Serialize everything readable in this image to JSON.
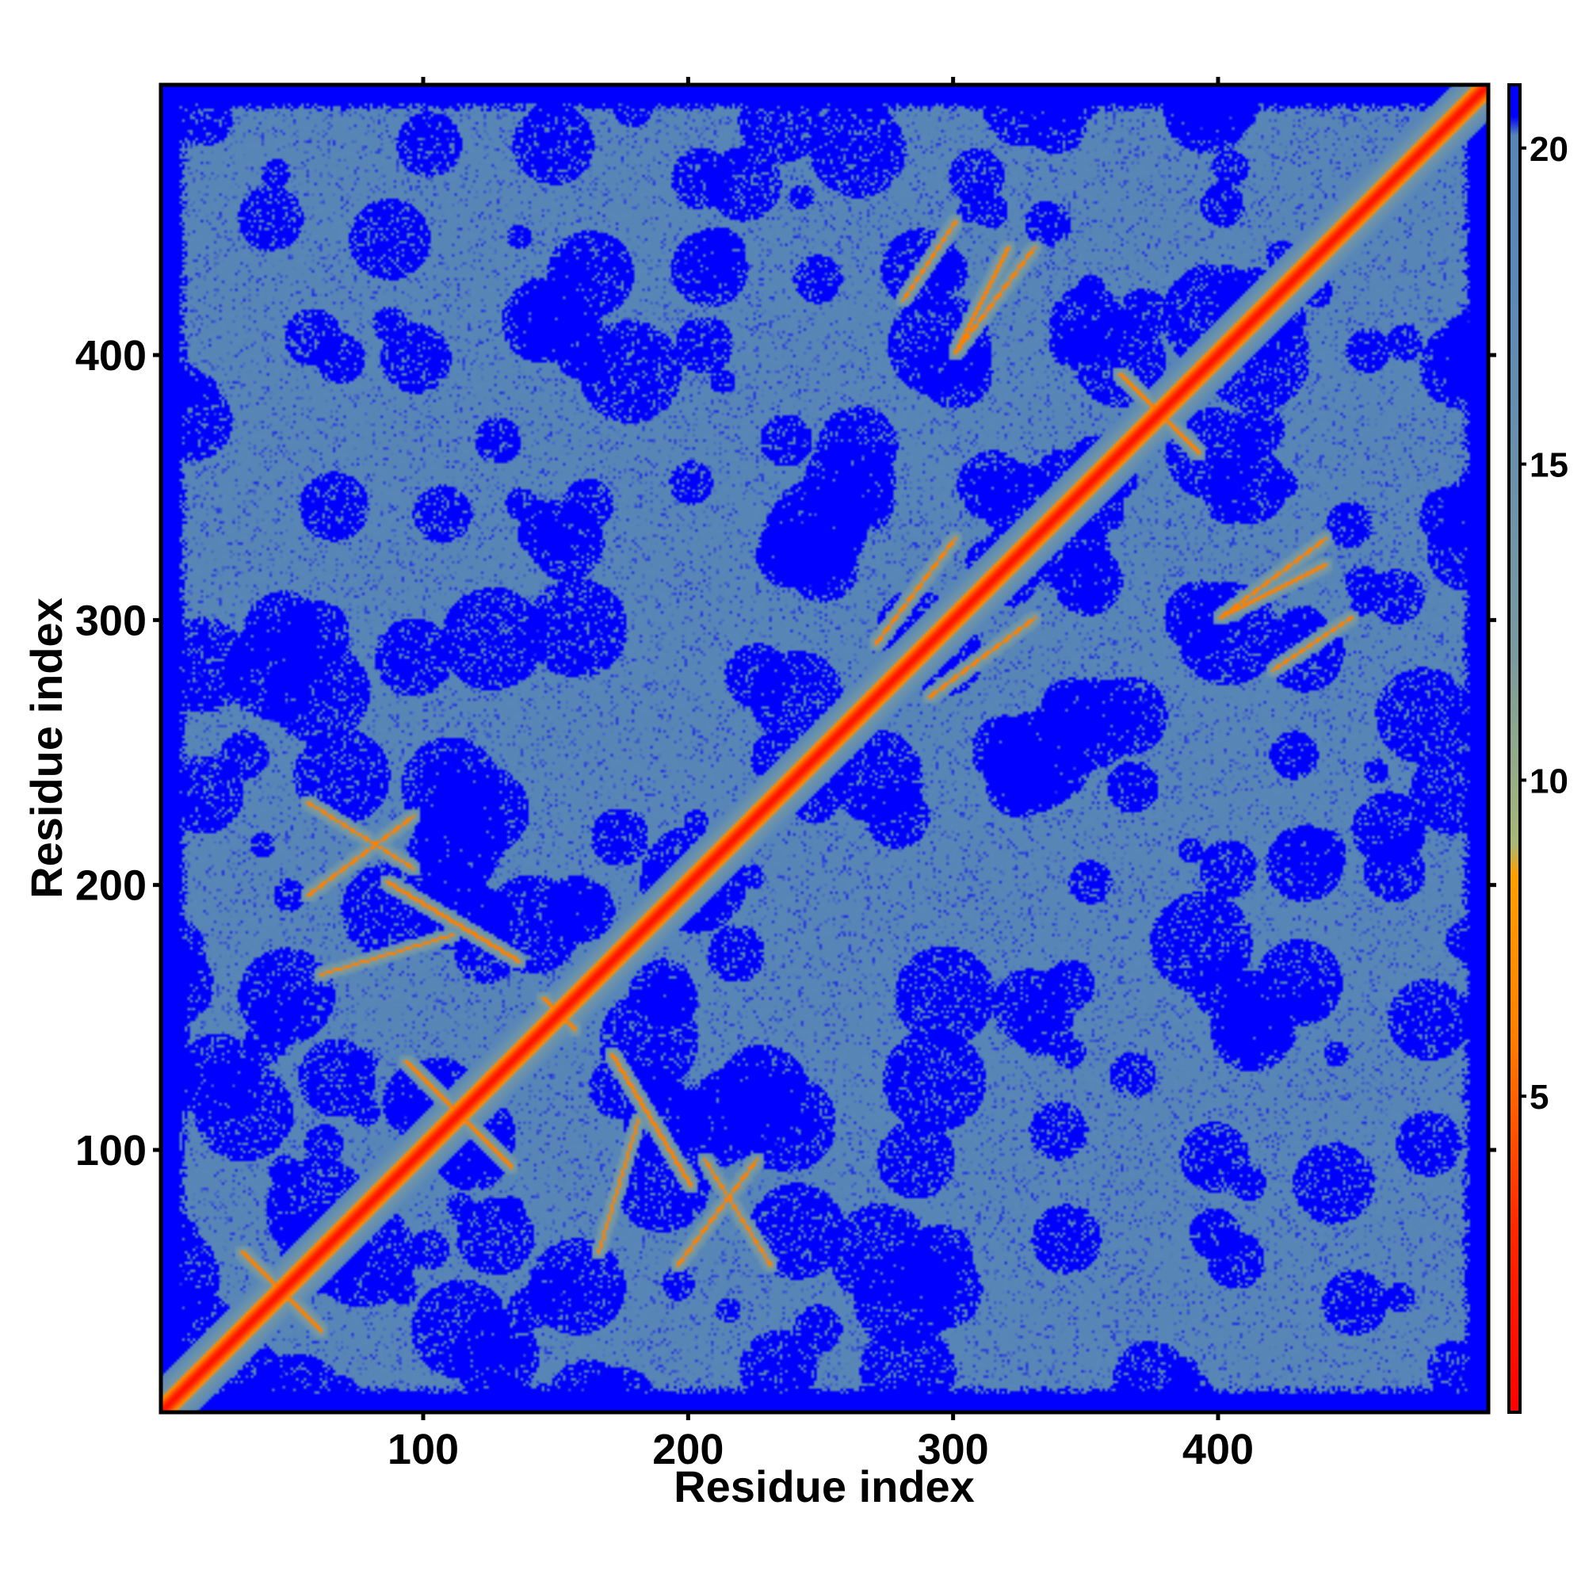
{
  "chart_data": {
    "type": "heatmap",
    "title": "",
    "xlabel": "Residue index",
    "ylabel": "Residue index",
    "xlim": [
      1,
      502
    ],
    "ylim": [
      1,
      502
    ],
    "x_ticks": [
      100,
      200,
      300,
      400
    ],
    "y_ticks": [
      100,
      200,
      300,
      400
    ],
    "x_tick_labels": [
      "100",
      "200",
      "300",
      "400"
    ],
    "y_tick_labels": [
      "100",
      "200",
      "300",
      "400"
    ],
    "colorbar": {
      "range": [
        0,
        21
      ],
      "ticks": [
        5,
        10,
        15,
        20
      ],
      "tick_labels": [
        "5",
        "10",
        "15",
        "20"
      ],
      "stops": [
        {
          "value": 0,
          "color": "#ff0000"
        },
        {
          "value": 3,
          "color": "#ff2a00"
        },
        {
          "value": 6,
          "color": "#ff8000"
        },
        {
          "value": 8.5,
          "color": "#ffa000"
        },
        {
          "value": 9,
          "color": "#a8b878"
        },
        {
          "value": 12,
          "color": "#7a9aa0"
        },
        {
          "value": 18,
          "color": "#5a88b8"
        },
        {
          "value": 20.2,
          "color": "#5786b6"
        },
        {
          "value": 20.5,
          "color": "#0000ff"
        },
        {
          "value": 21,
          "color": "#0000ff"
        }
      ]
    },
    "matrix_description_values": {
      "far_value": 21,
      "background_value": 19,
      "contact_value": 6,
      "diagonal_value": 1
    },
    "contact_features": [
      {
        "type": "antiparallel",
        "center": [
          45,
          45
        ],
        "length": 30
      },
      {
        "type": "antiparallel",
        "center": [
          112,
          112
        ],
        "length": 40
      },
      {
        "type": "antiparallel",
        "center": [
          150,
          150
        ],
        "length": 12
      },
      {
        "type": "antiparallel",
        "center": [
          377,
          377
        ],
        "length": 30
      },
      {
        "type": "parallel",
        "from": [
          195,
          55
        ],
        "to": [
          225,
          95
        ]
      },
      {
        "type": "parallel",
        "from": [
          165,
          60
        ],
        "to": [
          180,
          110
        ]
      },
      {
        "type": "parallel",
        "from": [
          85,
          200
        ],
        "to": [
          135,
          170
        ]
      },
      {
        "type": "parallel",
        "from": [
          55,
          230
        ],
        "to": [
          95,
          205
        ]
      },
      {
        "type": "parallel",
        "from": [
          290,
          270
        ],
        "to": [
          330,
          300
        ]
      },
      {
        "type": "parallel",
        "from": [
          420,
          280
        ],
        "to": [
          450,
          300
        ]
      },
      {
        "type": "parallel",
        "from": [
          400,
          300
        ],
        "to": [
          440,
          320
        ]
      },
      {
        "type": "parallel",
        "from": [
          300,
          400
        ],
        "to": [
          330,
          440
        ]
      },
      {
        "type": "parallel",
        "from": [
          440,
          440
        ],
        "to": [
          470,
          470
        ]
      }
    ],
    "grid": false,
    "legend_position": "right"
  }
}
